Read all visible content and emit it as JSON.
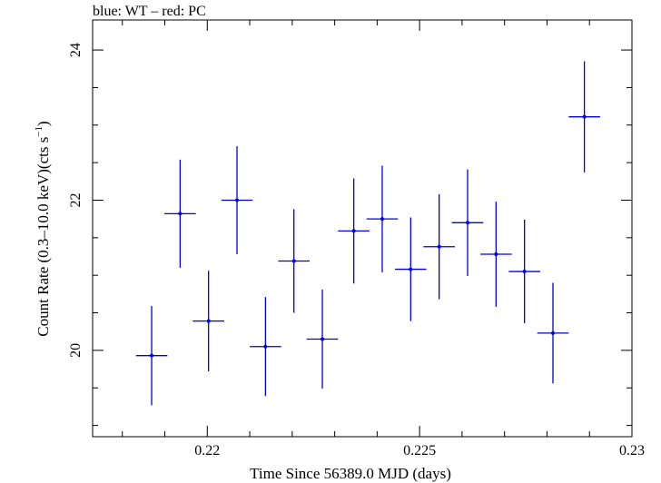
{
  "chart_data": {
    "type": "scatter",
    "title": "blue: WT – red: PC",
    "xlabel": "Time Since 56389.0 MJD (days)",
    "ylabel_main": "Count Rate (0.3–10.0 keV)(cts s",
    "ylabel_sup": "−1",
    "ylabel_close": ")",
    "xlim": [
      0.2173,
      0.23
    ],
    "ylim": [
      18.85,
      24.4
    ],
    "x_ticks": [
      0.22,
      0.225,
      0.23
    ],
    "x_tick_labels": [
      "0.22",
      "0.225",
      "0.23"
    ],
    "y_ticks": [
      20,
      22,
      24
    ],
    "y_tick_labels": [
      "20",
      "22",
      "24"
    ],
    "grid": false,
    "colors": {
      "WT": "#0000dd",
      "PC": "#dd0000"
    },
    "series": [
      {
        "mode": "WT",
        "x_halfwidth": 0.00037,
        "points": [
          {
            "x": 0.21869,
            "y": 19.93,
            "yerr": 0.66
          },
          {
            "x": 0.21936,
            "y": 21.82,
            "yerr": 0.72
          },
          {
            "x": 0.22003,
            "y": 20.39,
            "yerr": 0.67
          },
          {
            "x": 0.2207,
            "y": 22.0,
            "yerr": 0.72
          },
          {
            "x": 0.22137,
            "y": 20.05,
            "yerr": 0.66
          },
          {
            "x": 0.22204,
            "y": 21.19,
            "yerr": 0.69
          },
          {
            "x": 0.22271,
            "y": 20.15,
            "yerr": 0.66
          },
          {
            "x": 0.22345,
            "y": 21.59,
            "yerr": 0.7
          },
          {
            "x": 0.22412,
            "y": 21.75,
            "yerr": 0.71
          },
          {
            "x": 0.22479,
            "y": 21.08,
            "yerr": 0.69
          },
          {
            "x": 0.22546,
            "y": 21.38,
            "yerr": 0.7
          },
          {
            "x": 0.22613,
            "y": 21.7,
            "yerr": 0.71
          },
          {
            "x": 0.2268,
            "y": 21.28,
            "yerr": 0.7
          },
          {
            "x": 0.22747,
            "y": 21.05,
            "yerr": 0.69
          },
          {
            "x": 0.22814,
            "y": 20.23,
            "yerr": 0.67
          },
          {
            "x": 0.22888,
            "y": 23.11,
            "yerr": 0.74
          }
        ]
      }
    ]
  }
}
